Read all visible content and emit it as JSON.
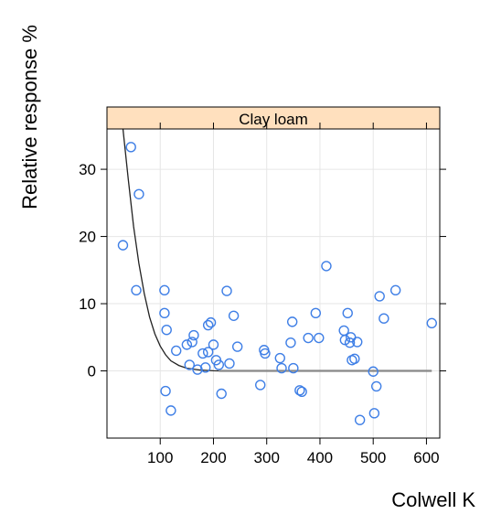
{
  "chart_data": {
    "type": "scatter",
    "panel": "Clay loam",
    "xlabel": "Colwell K",
    "ylabel": "Relative response %",
    "xlim": [
      0,
      625
    ],
    "ylim": [
      -10,
      36
    ],
    "xticks": [
      100,
      200,
      300,
      400,
      500,
      600
    ],
    "yticks": [
      0,
      10,
      20,
      30
    ],
    "grid": true,
    "colors": {
      "points": "#3f7fe6",
      "curve": "#222222",
      "flat_line": "#888888",
      "strip": "#ffe0be",
      "grid": "#e6e6e6"
    },
    "points": [
      {
        "x": 30,
        "y": 18.7
      },
      {
        "x": 45,
        "y": 33.3
      },
      {
        "x": 55,
        "y": 12.0
      },
      {
        "x": 60,
        "y": 26.3
      },
      {
        "x": 108,
        "y": 12.0
      },
      {
        "x": 108,
        "y": 8.6
      },
      {
        "x": 110,
        "y": -3.0
      },
      {
        "x": 112,
        "y": 6.1
      },
      {
        "x": 120,
        "y": -5.9
      },
      {
        "x": 130,
        "y": 3.0
      },
      {
        "x": 150,
        "y": 3.9
      },
      {
        "x": 155,
        "y": 0.9
      },
      {
        "x": 160,
        "y": 4.3
      },
      {
        "x": 163,
        "y": 5.3
      },
      {
        "x": 170,
        "y": 0.2
      },
      {
        "x": 180,
        "y": 2.6
      },
      {
        "x": 185,
        "y": 0.5
      },
      {
        "x": 190,
        "y": 6.8
      },
      {
        "x": 190,
        "y": 2.8
      },
      {
        "x": 195,
        "y": 7.2
      },
      {
        "x": 200,
        "y": 3.9
      },
      {
        "x": 205,
        "y": 1.6
      },
      {
        "x": 210,
        "y": 0.9
      },
      {
        "x": 215,
        "y": -3.4
      },
      {
        "x": 225,
        "y": 11.9
      },
      {
        "x": 230,
        "y": 1.1
      },
      {
        "x": 238,
        "y": 8.2
      },
      {
        "x": 245,
        "y": 3.6
      },
      {
        "x": 288,
        "y": -2.1
      },
      {
        "x": 295,
        "y": 3.1
      },
      {
        "x": 297,
        "y": 2.6
      },
      {
        "x": 325,
        "y": 1.9
      },
      {
        "x": 328,
        "y": 0.4
      },
      {
        "x": 345,
        "y": 4.2
      },
      {
        "x": 348,
        "y": 7.3
      },
      {
        "x": 350,
        "y": 0.4
      },
      {
        "x": 362,
        "y": -2.9
      },
      {
        "x": 366,
        "y": -3.1
      },
      {
        "x": 378,
        "y": 4.9
      },
      {
        "x": 392,
        "y": 8.6
      },
      {
        "x": 398,
        "y": 4.9
      },
      {
        "x": 412,
        "y": 15.6
      },
      {
        "x": 445,
        "y": 6.0
      },
      {
        "x": 447,
        "y": 4.6
      },
      {
        "x": 452,
        "y": 8.6
      },
      {
        "x": 456,
        "y": 4.2
      },
      {
        "x": 458,
        "y": 5.0
      },
      {
        "x": 460,
        "y": 1.6
      },
      {
        "x": 465,
        "y": 1.8
      },
      {
        "x": 470,
        "y": 4.3
      },
      {
        "x": 475,
        "y": -7.3
      },
      {
        "x": 500,
        "y": -0.1
      },
      {
        "x": 502,
        "y": -6.3
      },
      {
        "x": 506,
        "y": -2.3
      },
      {
        "x": 512,
        "y": 11.1
      },
      {
        "x": 520,
        "y": 7.8
      },
      {
        "x": 542,
        "y": 12.0
      },
      {
        "x": 610,
        "y": 7.1
      }
    ],
    "curve": {
      "points": [
        {
          "x": 30,
          "y": 36.0
        },
        {
          "x": 40,
          "y": 28.5
        },
        {
          "x": 50,
          "y": 21.5
        },
        {
          "x": 60,
          "y": 16.0
        },
        {
          "x": 70,
          "y": 11.5
        },
        {
          "x": 80,
          "y": 8.0
        },
        {
          "x": 90,
          "y": 5.5
        },
        {
          "x": 100,
          "y": 3.7
        },
        {
          "x": 110,
          "y": 2.4
        },
        {
          "x": 120,
          "y": 1.5
        },
        {
          "x": 135,
          "y": 0.8
        },
        {
          "x": 150,
          "y": 0.4
        },
        {
          "x": 175,
          "y": 0.12
        },
        {
          "x": 200,
          "y": 0.02
        },
        {
          "x": 210,
          "y": 0.0
        }
      ],
      "flat_segment": {
        "from": 210,
        "to": 610,
        "y": 0
      }
    }
  }
}
